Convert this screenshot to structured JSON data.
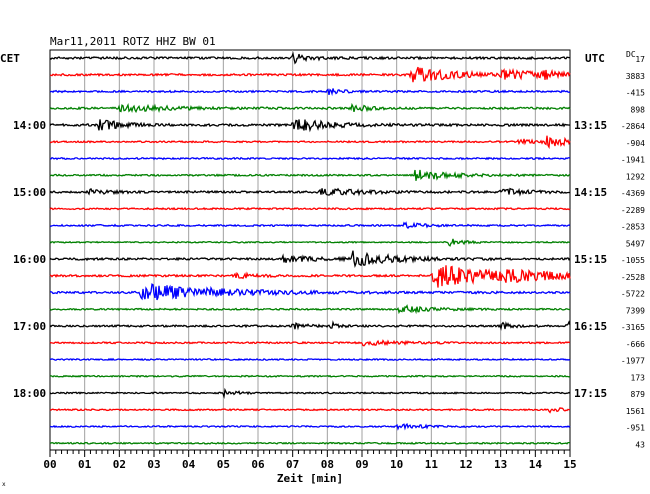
{
  "chart_data": {
    "type": "line",
    "title": "Mar11,2011   ROTZ HHZ BW 01",
    "left_label": "CET",
    "right_label": "UTC",
    "dc_label": "DC",
    "xlabel": "Zeit [min]",
    "xlim": [
      0,
      15
    ],
    "x_ticks": [
      "00",
      "01",
      "02",
      "03",
      "04",
      "05",
      "06",
      "07",
      "08",
      "09",
      "10",
      "11",
      "12",
      "13",
      "14",
      "15"
    ],
    "left_hour_labels": [
      {
        "label": "14:00",
        "trace": 4
      },
      {
        "label": "15:00",
        "trace": 8
      },
      {
        "label": "16:00",
        "trace": 12
      },
      {
        "label": "17:00",
        "trace": 16
      },
      {
        "label": "18:00",
        "trace": 20
      }
    ],
    "right_hour_labels": [
      {
        "label": "13:15",
        "trace": 4
      },
      {
        "label": "14:15",
        "trace": 8
      },
      {
        "label": "15:15",
        "trace": 12
      },
      {
        "label": "16:15",
        "trace": 16
      },
      {
        "label": "17:15",
        "trace": 20
      }
    ],
    "colors": [
      "#000000",
      "#ff0000",
      "#0000ff",
      "#008000"
    ],
    "traces": [
      {
        "dc": "17",
        "noise": 1.1,
        "events": [
          {
            "t": 7.0,
            "amp": 5,
            "dur": 0.4
          }
        ]
      },
      {
        "dc": "3883",
        "noise": 1.0,
        "events": [
          {
            "t": 10.4,
            "amp": 8,
            "dur": 1.2
          },
          {
            "t": 13.0,
            "amp": 4,
            "dur": 1.2
          },
          {
            "t": 14.2,
            "amp": 4,
            "dur": 0.3
          }
        ]
      },
      {
        "dc": "-415",
        "noise": 0.9,
        "events": [
          {
            "t": 8.0,
            "amp": 4,
            "dur": 0.3
          }
        ]
      },
      {
        "dc": "898",
        "noise": 1.0,
        "events": [
          {
            "t": 2.0,
            "amp": 4,
            "dur": 1.2
          },
          {
            "t": 8.7,
            "amp": 4,
            "dur": 0.4
          }
        ]
      },
      {
        "dc": "-2864",
        "noise": 1.1,
        "events": [
          {
            "t": 1.4,
            "amp": 6,
            "dur": 0.6
          },
          {
            "t": 7.0,
            "amp": 7,
            "dur": 0.9
          }
        ]
      },
      {
        "dc": "-904",
        "noise": 0.8,
        "events": [
          {
            "t": 13.5,
            "amp": 3,
            "dur": 0.5
          },
          {
            "t": 14.3,
            "amp": 5,
            "dur": 0.7
          }
        ]
      },
      {
        "dc": "-1941",
        "noise": 0.8,
        "events": []
      },
      {
        "dc": "1292",
        "noise": 0.8,
        "events": [
          {
            "t": 10.5,
            "amp": 6,
            "dur": 0.9
          }
        ]
      },
      {
        "dc": "-4369",
        "noise": 1.0,
        "events": [
          {
            "t": 1.1,
            "amp": 3,
            "dur": 0.5
          },
          {
            "t": 7.8,
            "amp": 4,
            "dur": 1.0
          },
          {
            "t": 13.0,
            "amp": 4,
            "dur": 0.6
          }
        ]
      },
      {
        "dc": "-2289",
        "noise": 0.8,
        "events": []
      },
      {
        "dc": "-2853",
        "noise": 0.8,
        "events": [
          {
            "t": 10.2,
            "amp": 3,
            "dur": 0.5
          }
        ]
      },
      {
        "dc": "5497",
        "noise": 0.6,
        "events": [
          {
            "t": 11.5,
            "amp": 4,
            "dur": 0.4
          }
        ]
      },
      {
        "dc": "-1055",
        "noise": 1.0,
        "events": [
          {
            "t": 6.7,
            "amp": 3,
            "dur": 1.0
          },
          {
            "t": 8.7,
            "amp": 8,
            "dur": 1.0
          }
        ]
      },
      {
        "dc": "-2528",
        "noise": 1.0,
        "events": [
          {
            "t": 5.3,
            "amp": 3,
            "dur": 0.5
          },
          {
            "t": 11.0,
            "amp": 13,
            "dur": 1.8
          },
          {
            "t": 13.0,
            "amp": 4,
            "dur": 1.4
          }
        ]
      },
      {
        "dc": "-5722",
        "noise": 1.0,
        "events": [
          {
            "t": 2.6,
            "amp": 10,
            "dur": 2.0
          }
        ]
      },
      {
        "dc": "7399",
        "noise": 0.8,
        "events": [
          {
            "t": 10.0,
            "amp": 4,
            "dur": 0.8
          }
        ]
      },
      {
        "dc": "-3165",
        "noise": 0.9,
        "events": [
          {
            "t": 7.0,
            "amp": 4,
            "dur": 0.3
          },
          {
            "t": 8.1,
            "amp": 4,
            "dur": 0.2
          },
          {
            "t": 13.0,
            "amp": 4,
            "dur": 0.3
          },
          {
            "t": 14.9,
            "amp": 4,
            "dur": 0.3
          }
        ]
      },
      {
        "dc": "-666",
        "noise": 0.8,
        "events": [
          {
            "t": 9.0,
            "amp": 3,
            "dur": 0.9
          }
        ]
      },
      {
        "dc": "-1977",
        "noise": 0.7,
        "events": []
      },
      {
        "dc": "173",
        "noise": 0.7,
        "events": []
      },
      {
        "dc": "879",
        "noise": 0.7,
        "events": [
          {
            "t": 5.0,
            "amp": 4,
            "dur": 0.3
          }
        ]
      },
      {
        "dc": "1561",
        "noise": 0.7,
        "events": [
          {
            "t": 14.4,
            "amp": 3,
            "dur": 0.4
          }
        ]
      },
      {
        "dc": "-951",
        "noise": 0.7,
        "events": [
          {
            "t": 10.0,
            "amp": 3,
            "dur": 0.6
          }
        ]
      },
      {
        "dc": "43",
        "noise": 0.7,
        "events": []
      }
    ],
    "grid": true
  }
}
